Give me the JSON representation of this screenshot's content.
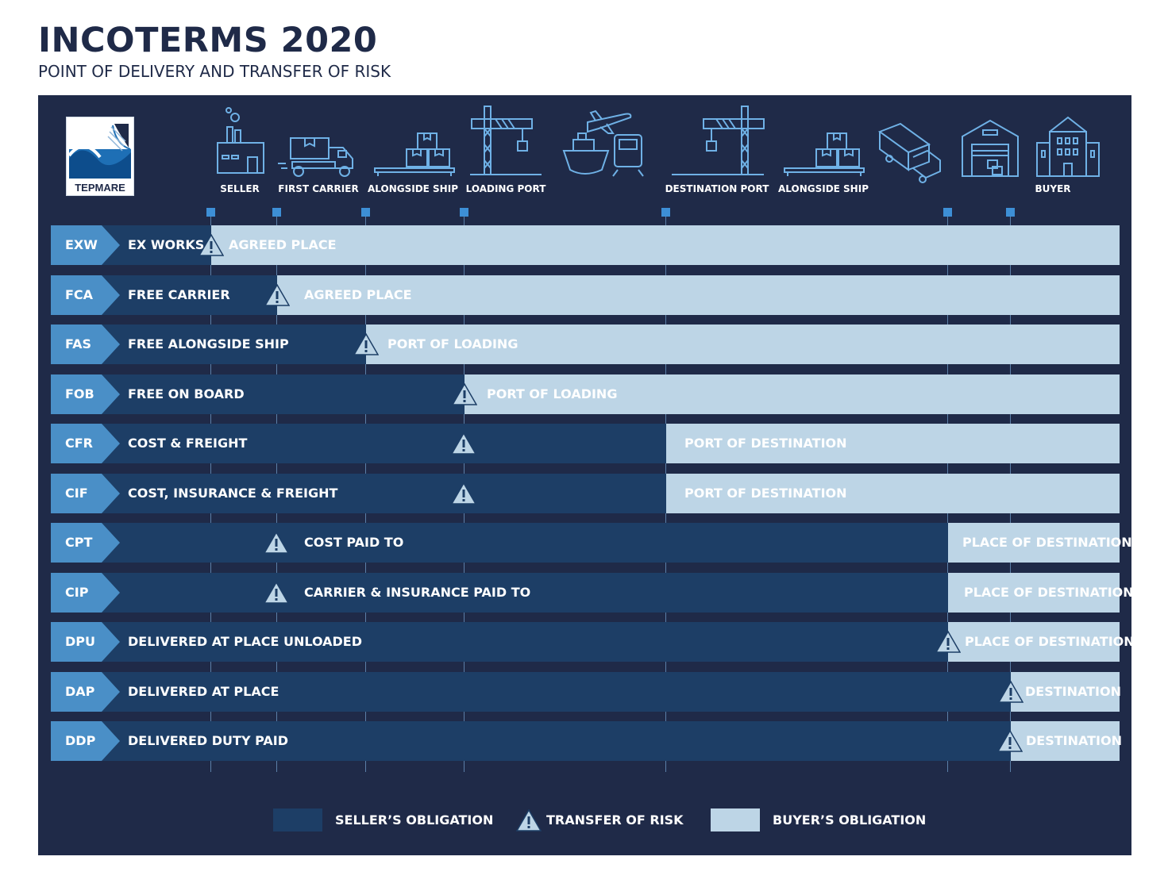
{
  "header": {
    "title": "INCOTERMS 2020",
    "subtitle": "POINT OF DELIVERY AND TRANSFER OF RISK"
  },
  "logo": {
    "text": "TEPMARE"
  },
  "stages": [
    {
      "label": "SELLER",
      "icon": "factory-icon"
    },
    {
      "label": "FIRST CARRIER",
      "icon": "truck-icon"
    },
    {
      "label": "ALONGSIDE SHIP",
      "icon": "pallet-boxes-icon"
    },
    {
      "label": "LOADING PORT",
      "icon": "crane-icon"
    },
    {
      "label": "",
      "icon": "plane-ship-train-icon"
    },
    {
      "label": "DESTINATION PORT",
      "icon": "crane-icon"
    },
    {
      "label": "ALONGSIDE SHIP",
      "icon": "pallet-boxes-icon"
    },
    {
      "label": "",
      "icon": "delivery-truck-icon"
    },
    {
      "label": "",
      "icon": "warehouse-icon"
    },
    {
      "label": "BUYER",
      "icon": "office-building-icon"
    }
  ],
  "terms": [
    {
      "code": "EXW",
      "name": "EX WORKS",
      "buyer_label": "AGREED PLACE"
    },
    {
      "code": "FCA",
      "name": "FREE CARRIER",
      "buyer_label": "AGREED PLACE"
    },
    {
      "code": "FAS",
      "name": "FREE ALONGSIDE SHIP",
      "buyer_label": "PORT OF LOADING"
    },
    {
      "code": "FOB",
      "name": "FREE ON BOARD",
      "buyer_label": "PORT OF LOADING"
    },
    {
      "code": "CFR",
      "name": "COST & FREIGHT",
      "buyer_label": "PORT OF DESTINATION"
    },
    {
      "code": "CIF",
      "name": "COST, INSURANCE & FREIGHT",
      "buyer_label": "PORT OF DESTINATION"
    },
    {
      "code": "CPT",
      "name": "COST PAID TO",
      "buyer_label": "PLACE OF DESTINATION"
    },
    {
      "code": "CIP",
      "name": "CARRIER & INSURANCE PAID TO",
      "buyer_label": "PLACE OF DESTINATION"
    },
    {
      "code": "DPU",
      "name": "DELIVERED AT PLACE UNLOADED",
      "buyer_label": "PLACE OF DESTINATION"
    },
    {
      "code": "DAP",
      "name": "DELIVERED AT PLACE",
      "buyer_label": "DESTINATION"
    },
    {
      "code": "DDP",
      "name": "DELIVERED DUTY PAID",
      "buyer_label": "DESTINATION"
    }
  ],
  "legend": {
    "seller": "SELLER’S OBLIGATION",
    "risk": "TRANSFER OF RISK",
    "buyer": "BUYER’S OBLIGATION"
  },
  "colors": {
    "background": "#1f2a48",
    "seller": "#1d3e66",
    "buyer": "#bdd5e6",
    "code_chevron": "#4a8fc7",
    "marker": "#3d8fd6"
  }
}
